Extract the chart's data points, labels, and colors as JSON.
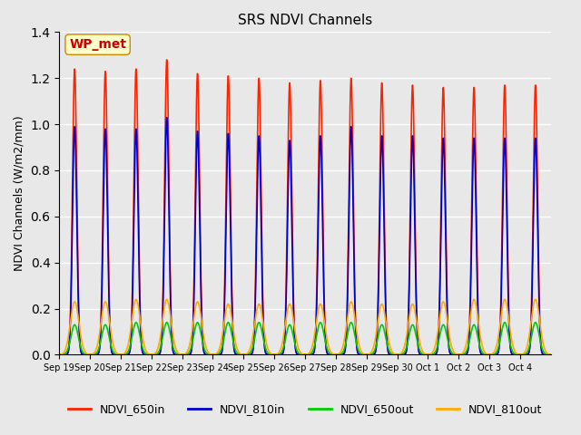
{
  "title": "SRS NDVI Channels",
  "ylabel": "NDVI Channels (W/m2/mm)",
  "annotation_text": "WP_met",
  "annotation_bbox": {
    "facecolor": "#ffffcc",
    "edgecolor": "#cc8800",
    "boxstyle": "round,pad=0.3"
  },
  "annotation_text_color": "#cc0000",
  "ylim": [
    0,
    1.4
  ],
  "plot_bg_color": "#e8e8e8",
  "grid_color": "white",
  "series": {
    "NDVI_650in": {
      "color": "#ff2200",
      "lw": 1.2
    },
    "NDVI_810in": {
      "color": "#0000cc",
      "lw": 1.2
    },
    "NDVI_650out": {
      "color": "#00cc00",
      "lw": 1.2
    },
    "NDVI_810out": {
      "color": "#ffaa00",
      "lw": 1.2
    }
  },
  "tick_labels": [
    "Sep 19",
    "Sep 20",
    "Sep 21",
    "Sep 22",
    "Sep 23",
    "Sep 24",
    "Sep 25",
    "Sep 26",
    "Sep 27",
    "Sep 28",
    "Sep 29",
    "Sep 30",
    "Oct 1",
    "Oct 2",
    "Oct 3",
    "Oct 4"
  ],
  "num_peaks": 16,
  "peaks_650in": [
    1.24,
    1.23,
    1.24,
    1.28,
    1.22,
    1.21,
    1.2,
    1.18,
    1.19,
    1.2,
    1.18,
    1.17,
    1.16,
    1.16,
    1.17,
    1.17
  ],
  "peaks_810in": [
    0.99,
    0.98,
    0.98,
    1.03,
    0.97,
    0.96,
    0.95,
    0.93,
    0.95,
    0.99,
    0.95,
    0.95,
    0.94,
    0.94,
    0.94,
    0.94
  ],
  "peaks_650out": [
    0.13,
    0.13,
    0.14,
    0.14,
    0.14,
    0.14,
    0.14,
    0.13,
    0.14,
    0.14,
    0.13,
    0.13,
    0.13,
    0.13,
    0.14,
    0.14
  ],
  "peaks_810out": [
    0.23,
    0.23,
    0.24,
    0.24,
    0.23,
    0.22,
    0.22,
    0.22,
    0.22,
    0.23,
    0.22,
    0.22,
    0.23,
    0.24,
    0.24,
    0.24
  ]
}
